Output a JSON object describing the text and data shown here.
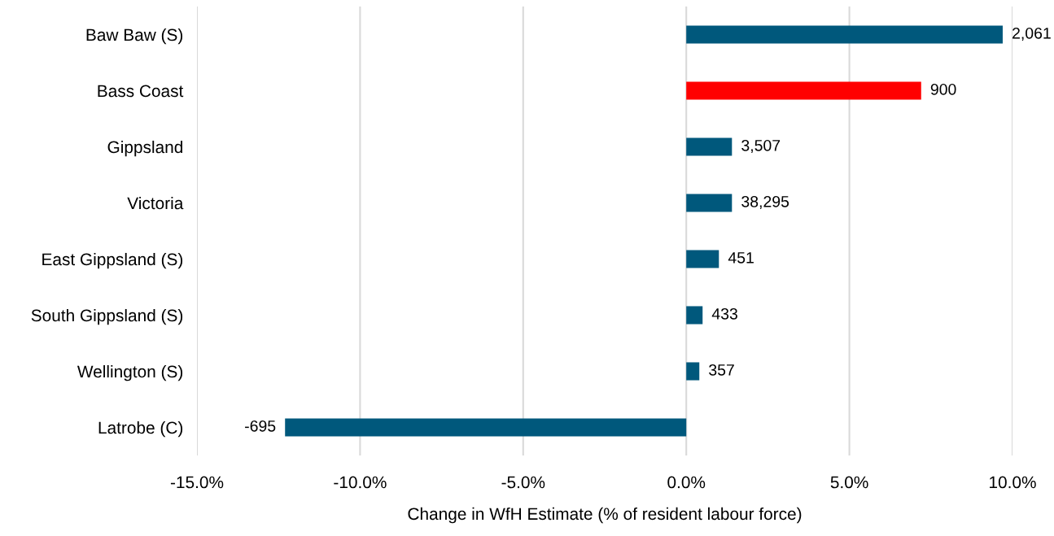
{
  "chart_data": {
    "type": "bar",
    "orientation": "horizontal",
    "xlabel": "Change in WfH Estimate (% of resident labour force)",
    "categories": [
      "Baw Baw (S)",
      "Bass Coast",
      "Gippsland",
      "Victoria",
      "East Gippsland (S)",
      "South Gippsland (S)",
      "Wellington (S)",
      "Latrobe (C)"
    ],
    "values": [
      9.7,
      7.2,
      1.4,
      1.4,
      1.0,
      0.5,
      0.4,
      -12.3
    ],
    "colors": [
      "#00587c",
      "#ff0000",
      "#00587c",
      "#00587c",
      "#00587c",
      "#00587c",
      "#00587c",
      "#00587c"
    ],
    "annotations": [
      {
        "text": "2,061",
        "x": 9.7,
        "y": "Baw Baw (S)"
      },
      {
        "text": "900",
        "x": 7.2,
        "y": "Bass Coast"
      },
      {
        "text": "3,507",
        "x": 1.4,
        "y": "Gippsland"
      },
      {
        "text": "38,295",
        "x": 1.4,
        "y": "Victoria"
      },
      {
        "text": "451",
        "x": 1.0,
        "y": "East Gippsland (S)"
      },
      {
        "text": "433",
        "x": 0.5,
        "y": "South Gippsland (S)"
      },
      {
        "text": "357",
        "x": 0.4,
        "y": "Wellington (S)"
      },
      {
        "text": "-695",
        "x": -12.3,
        "y": "Latrobe (C)"
      }
    ],
    "xlim": [
      -15,
      10
    ],
    "xticks": [
      {
        "value": -15,
        "label": "-15.0%"
      },
      {
        "value": -10,
        "label": "-10.0%"
      },
      {
        "value": -5,
        "label": "-5.0%"
      },
      {
        "value": 0,
        "label": "0.0%"
      },
      {
        "value": 5,
        "label": "5.0%"
      },
      {
        "value": 10,
        "label": "10.0%"
      }
    ],
    "grid": "x",
    "legend": false
  }
}
